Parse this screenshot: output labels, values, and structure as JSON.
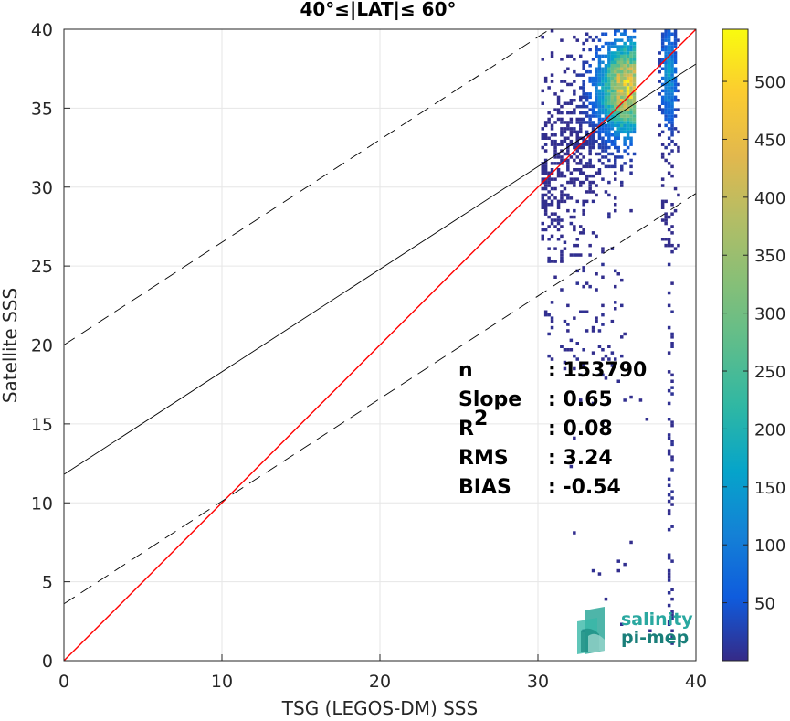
{
  "chart_data": {
    "type": "heatmap",
    "title": "40°≤|LAT|≤ 60°",
    "xlabel": "TSG (LEGOS-DM) SSS",
    "ylabel": "Satellite SSS",
    "xlim": [
      0,
      40
    ],
    "ylim": [
      0,
      40
    ],
    "xticks": [
      "0",
      "10",
      "20",
      "30",
      "40"
    ],
    "yticks": [
      "0",
      "5",
      "10",
      "15",
      "20",
      "25",
      "30",
      "35",
      "40"
    ],
    "grid": true,
    "colorbar": {
      "colormap": "parula",
      "range": [
        0,
        545
      ],
      "ticks": [
        "50",
        "100",
        "150",
        "200",
        "250",
        "300",
        "350",
        "400",
        "450",
        "500"
      ]
    },
    "density_clusters": [
      {
        "x_range": [
          30.2,
          36.2
        ],
        "y_range": [
          18,
          40
        ],
        "peak_x": 35.6,
        "peak_y": 36.2,
        "peak_count": 545
      },
      {
        "x_range": [
          37.6,
          38.9
        ],
        "y_range": [
          1,
          40
        ],
        "peak_x": 38.2,
        "peak_y": 37,
        "peak_count": 180
      }
    ],
    "lines": [
      {
        "name": "1:1 line",
        "color": "#ff0000",
        "style": "solid",
        "points": [
          [
            0,
            0
          ],
          [
            40,
            40
          ]
        ]
      },
      {
        "name": "linear fit",
        "color": "#000000",
        "style": "solid",
        "points": [
          [
            0,
            11.8
          ],
          [
            40,
            37.8
          ]
        ]
      },
      {
        "name": "upper bound",
        "color": "#000000",
        "style": "dashed",
        "points": [
          [
            0,
            20
          ],
          [
            30.6,
            39.9
          ]
        ]
      },
      {
        "name": "lower bound",
        "color": "#000000",
        "style": "dashed",
        "points": [
          [
            0,
            3.6
          ],
          [
            40,
            29.6
          ]
        ]
      }
    ],
    "stats": [
      {
        "label": "n",
        "value": ": 153790"
      },
      {
        "label": "Slope",
        "value": ": 0.65"
      },
      {
        "label": "R",
        "sup": "2",
        "value": ": 0.08"
      },
      {
        "label": "RMS",
        "value": ": 3.24"
      },
      {
        "label": "BIAS",
        "value": ": -0.54"
      }
    ]
  },
  "logo": {
    "line1": "salinity",
    "line2": "pi-mep",
    "color1": "#2aa8a0",
    "color2": "#1a7f7a"
  }
}
